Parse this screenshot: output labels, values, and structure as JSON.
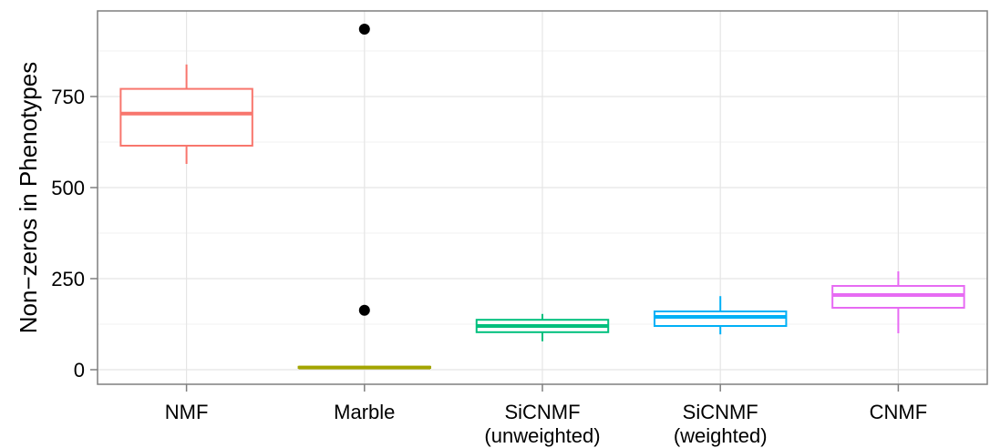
{
  "chart_data": {
    "type": "boxplot",
    "title": "",
    "xlabel": "",
    "ylabel": "Non−zeros in Phenotypes",
    "ylim": [
      -40,
      985
    ],
    "yticks": [
      0,
      250,
      500,
      750
    ],
    "ytick_labels": [
      "0",
      "250",
      "500",
      "750"
    ],
    "grid": true,
    "legend": "none",
    "categories": [
      [
        "NMF"
      ],
      [
        "Marble"
      ],
      [
        "SiCNMF",
        "(unweighted)"
      ],
      [
        "SiCNMF",
        "(weighted)"
      ],
      [
        "CNMF"
      ]
    ],
    "series": [
      {
        "q1": 615,
        "median": 703,
        "q3": 771,
        "whisker_low": 565,
        "whisker_high": 838,
        "outliers": [],
        "color": "#F8766D"
      },
      {
        "q1": 5,
        "median": 6,
        "q3": 8,
        "whisker_low": 5,
        "whisker_high": 8,
        "outliers": [
          163,
          935
        ],
        "color": "#A3A500"
      },
      {
        "q1": 103,
        "median": 120,
        "q3": 137,
        "whisker_low": 78,
        "whisker_high": 153,
        "outliers": [],
        "color": "#00BF7D"
      },
      {
        "q1": 120,
        "median": 145,
        "q3": 160,
        "whisker_low": 97,
        "whisker_high": 202,
        "outliers": [],
        "color": "#00B0F6"
      },
      {
        "q1": 170,
        "median": 205,
        "q3": 230,
        "whisker_low": 100,
        "whisker_high": 270,
        "outliers": [],
        "color": "#E76BF3"
      }
    ]
  }
}
